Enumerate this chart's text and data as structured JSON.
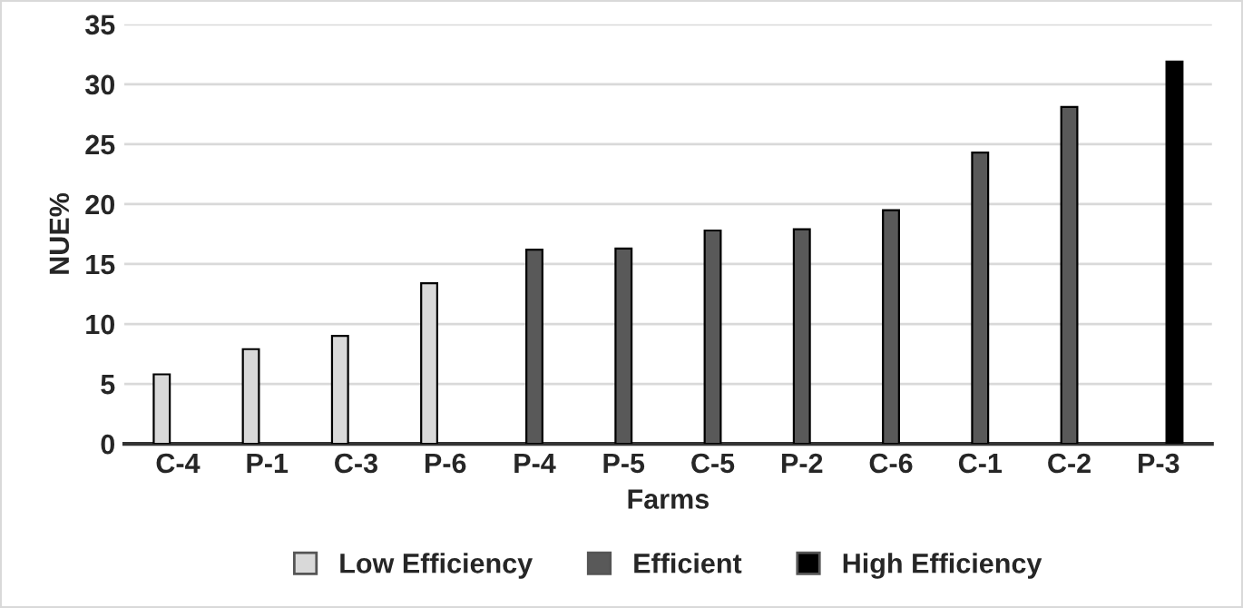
{
  "chart_data": {
    "type": "bar",
    "xlabel": "Farms",
    "ylabel": "NUE%",
    "categories": [
      "C-4",
      "P-1",
      "C-3",
      "P-6",
      "P-4",
      "P-5",
      "C-5",
      "P-2",
      "C-6",
      "C-1",
      "C-2",
      "P-3"
    ],
    "series": [
      {
        "name": "Low Efficiency",
        "color": "#d9d9d9",
        "values": [
          5.8,
          7.9,
          9.0,
          13.4,
          null,
          null,
          null,
          null,
          null,
          null,
          null,
          null
        ]
      },
      {
        "name": "Efficient",
        "color": "#595959",
        "values": [
          null,
          null,
          null,
          null,
          16.2,
          16.3,
          17.8,
          17.9,
          19.5,
          24.3,
          28.1,
          null
        ]
      },
      {
        "name": "High Efficiency",
        "color": "#000000",
        "values": [
          null,
          null,
          null,
          null,
          null,
          null,
          null,
          null,
          null,
          null,
          null,
          31.9
        ]
      }
    ],
    "ylim": [
      0,
      35
    ],
    "yticks": [
      0,
      5,
      10,
      15,
      20,
      25,
      30,
      35
    ],
    "grid": "y",
    "legend": "bottom"
  }
}
